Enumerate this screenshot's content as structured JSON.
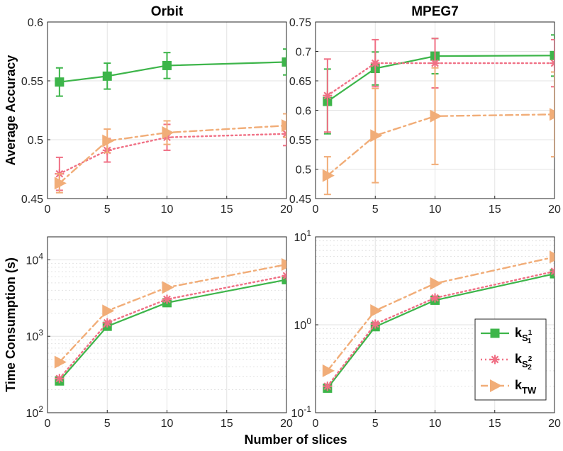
{
  "figure": {
    "shared_xlabel": "Number of slices"
  },
  "colors": {
    "s1": "#3db54a",
    "s2": "#f07085",
    "tw": "#f1ad78",
    "grid": "#e3e3e3",
    "axis": "#262626"
  },
  "legend": {
    "entries": [
      {
        "series": "s1",
        "main": "k",
        "sub": "S",
        "subsup": "1",
        "subsub": "1"
      },
      {
        "series": "s2",
        "main": "k",
        "sub": "S",
        "subsup": "2",
        "subsub": "2"
      },
      {
        "series": "tw",
        "main": "k",
        "sub": "TW",
        "subsup": "",
        "subsub": ""
      }
    ]
  },
  "chart_data": [
    {
      "id": "orbit-acc",
      "type": "line",
      "title": "Orbit",
      "ylabel": "Average Accuracy",
      "xlabel": "",
      "yscale": "linear",
      "xlim": [
        0,
        20
      ],
      "ylim": [
        0.45,
        0.6
      ],
      "xticks": [
        0,
        5,
        10,
        15,
        20
      ],
      "xtick_labels": [
        "0",
        "5",
        "10",
        "15",
        "20"
      ],
      "yticks": [
        0.45,
        0.5,
        0.55,
        0.6
      ],
      "ytick_labels": [
        "0.45",
        "0.5",
        "0.55",
        "0.6"
      ],
      "grid": true,
      "x": [
        1,
        5,
        10,
        20
      ],
      "series": [
        {
          "key": "s1",
          "values": [
            0.549,
            0.554,
            0.563,
            0.566
          ],
          "err": [
            0.012,
            0.011,
            0.011,
            0.011
          ]
        },
        {
          "key": "s2",
          "values": [
            0.471,
            0.491,
            0.502,
            0.505
          ],
          "err": [
            0.014,
            0.01,
            0.011,
            0.01
          ]
        },
        {
          "key": "tw",
          "values": [
            0.463,
            0.499,
            0.506,
            0.512
          ],
          "err": [
            0.008,
            0.01,
            0.01,
            0.01
          ]
        }
      ]
    },
    {
      "id": "mpeg7-acc",
      "type": "line",
      "title": "MPEG7",
      "ylabel": "",
      "xlabel": "",
      "yscale": "linear",
      "xlim": [
        0,
        20
      ],
      "ylim": [
        0.45,
        0.75
      ],
      "xticks": [
        0,
        5,
        10,
        15,
        20
      ],
      "xtick_labels": [
        "0",
        "5",
        "10",
        "15",
        "20"
      ],
      "yticks": [
        0.45,
        0.5,
        0.55,
        0.6,
        0.65,
        0.7,
        0.75
      ],
      "ytick_labels": [
        "0.45",
        "0.5",
        "0.55",
        "0.6",
        "0.65",
        "0.7",
        "0.75"
      ],
      "grid": true,
      "x": [
        1,
        5,
        10,
        20
      ],
      "series": [
        {
          "key": "s1",
          "values": [
            0.615,
            0.671,
            0.692,
            0.693
          ],
          "err": [
            0.055,
            0.028,
            0.03,
            0.035
          ]
        },
        {
          "key": "s2",
          "values": [
            0.625,
            0.68,
            0.68,
            0.68
          ],
          "err": [
            0.062,
            0.04,
            0.042,
            0.04
          ]
        },
        {
          "key": "tw",
          "values": [
            0.489,
            0.557,
            0.59,
            0.593
          ],
          "err": [
            0.032,
            0.08,
            0.082,
            0.072
          ]
        }
      ]
    },
    {
      "id": "orbit-time",
      "type": "line",
      "title": "",
      "ylabel": "Time Consumption (s)",
      "xlabel": "",
      "yscale": "log",
      "xlim": [
        0,
        20
      ],
      "ylim": [
        100,
        20000
      ],
      "xticks": [
        0,
        5,
        10,
        15,
        20
      ],
      "xtick_labels": [
        "0",
        "5",
        "10",
        "15",
        "20"
      ],
      "yticks": [
        100,
        1000,
        10000
      ],
      "ytick_labels": [
        {
          "base": "10",
          "exp": "2"
        },
        {
          "base": "10",
          "exp": "3"
        },
        {
          "base": "10",
          "exp": "4"
        }
      ],
      "grid": true,
      "x": [
        1,
        5,
        10,
        20
      ],
      "series": [
        {
          "key": "s1",
          "values": [
            260,
            1350,
            2750,
            5500
          ]
        },
        {
          "key": "s2",
          "values": [
            280,
            1500,
            3050,
            6200
          ]
        },
        {
          "key": "tw",
          "values": [
            460,
            2150,
            4350,
            8700
          ]
        }
      ]
    },
    {
      "id": "mpeg7-time",
      "type": "line",
      "title": "",
      "ylabel": "",
      "xlabel": "",
      "yscale": "log",
      "xlim": [
        0,
        20
      ],
      "ylim": [
        0.1,
        10
      ],
      "xticks": [
        0,
        5,
        10,
        15,
        20
      ],
      "xtick_labels": [
        "0",
        "5",
        "10",
        "15",
        "20"
      ],
      "yticks": [
        0.1,
        1,
        10
      ],
      "ytick_labels": [
        {
          "base": "10",
          "exp": "-1"
        },
        {
          "base": "10",
          "exp": "0"
        },
        {
          "base": "10",
          "exp": "1"
        }
      ],
      "grid": true,
      "x": [
        1,
        5,
        10,
        20
      ],
      "series": [
        {
          "key": "s1",
          "values": [
            0.19,
            0.95,
            1.9,
            3.8
          ]
        },
        {
          "key": "s2",
          "values": [
            0.2,
            1.02,
            2.02,
            4.05
          ]
        },
        {
          "key": "tw",
          "values": [
            0.3,
            1.45,
            2.95,
            5.9
          ]
        }
      ]
    }
  ]
}
